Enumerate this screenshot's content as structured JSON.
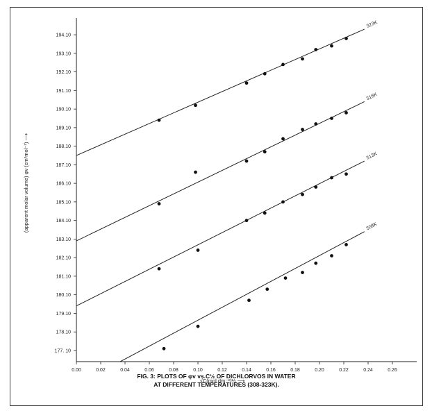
{
  "chart_data": {
    "type": "scatter",
    "title": "",
    "caption_line1": "FIG. 3:  PLOTS OF φv vs.C½ OF DICHLORVOS  IN WATER",
    "caption_line2": "AT DIFFERENT TEMPERATURES (308-323K).",
    "xlabel": "√C(mol dm⁻³)½ ⟶",
    "ylabel": "(apparent molar volume) φv (cm³mol⁻¹) ⟶",
    "xlim": [
      0.0,
      0.28
    ],
    "ylim": [
      176.5,
      195.0
    ],
    "x_ticks": [
      0.0,
      0.02,
      0.04,
      0.06,
      0.08,
      0.1,
      0.12,
      0.14,
      0.16,
      0.18,
      0.2,
      0.22,
      0.24,
      0.26
    ],
    "x_tick_labels": [
      "0.00",
      "0.02",
      "0.04",
      "0.06",
      "0.08",
      "0.10",
      "0.12",
      "0.14",
      "0.16",
      "0.18",
      "0.20",
      "0.22",
      "0.24",
      "0.26"
    ],
    "y_ticks": [
      177.1,
      178.1,
      179.1,
      180.1,
      181.1,
      182.1,
      183.1,
      184.1,
      185.1,
      186.1,
      187.1,
      188.1,
      189.1,
      190.1,
      191.1,
      192.1,
      193.1,
      194.1
    ],
    "y_tick_labels": [
      "177. 10",
      "178.10",
      "179.10",
      "180.10",
      "181.10",
      "182.10",
      "183.10",
      "184.10",
      "185.10",
      "186.10",
      "187.10",
      "188.10",
      "189.10",
      "190.10",
      "191.10",
      "192.10",
      "193.10",
      "194.10"
    ],
    "grid": false,
    "series": [
      {
        "name": "323K",
        "x": [
          0.068,
          0.098,
          0.14,
          0.155,
          0.17,
          0.186,
          0.197,
          0.21,
          0.222
        ],
        "y": [
          189.5,
          190.3,
          191.5,
          192.0,
          192.5,
          192.8,
          193.3,
          193.5,
          193.9
        ],
        "fit": {
          "x": [
            0.0,
            0.237
          ],
          "y": [
            187.6,
            194.4
          ]
        }
      },
      {
        "name": "318K",
        "x": [
          0.068,
          0.098,
          0.14,
          0.155,
          0.17,
          0.186,
          0.197,
          0.21,
          0.222
        ],
        "y": [
          185.0,
          186.7,
          187.3,
          187.8,
          188.5,
          189.0,
          189.3,
          189.6,
          189.9
        ],
        "fit": {
          "x": [
            0.0,
            0.237
          ],
          "y": [
            183.0,
            190.5
          ]
        }
      },
      {
        "name": "313K",
        "x": [
          0.068,
          0.1,
          0.14,
          0.155,
          0.17,
          0.186,
          0.197,
          0.21,
          0.222
        ],
        "y": [
          181.5,
          182.5,
          184.1,
          184.5,
          185.1,
          185.5,
          185.9,
          186.4,
          186.6
        ],
        "fit": {
          "x": [
            0.0,
            0.237
          ],
          "y": [
            179.5,
            187.3
          ]
        }
      },
      {
        "name": "308K",
        "x": [
          0.072,
          0.1,
          0.142,
          0.157,
          0.172,
          0.186,
          0.197,
          0.21,
          0.222
        ],
        "y": [
          177.2,
          178.4,
          179.8,
          180.4,
          181.0,
          181.3,
          181.8,
          182.2,
          182.8
        ],
        "fit": {
          "x": [
            0.036,
            0.237
          ],
          "y": [
            176.5,
            183.5
          ]
        }
      }
    ]
  }
}
